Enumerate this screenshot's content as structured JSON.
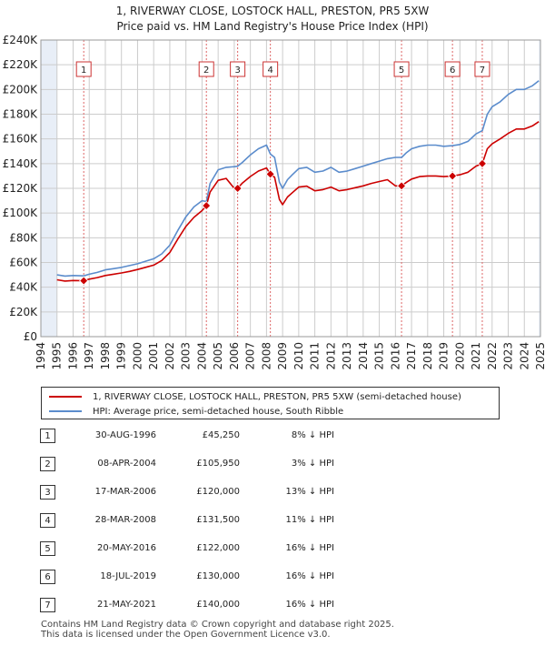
{
  "title": {
    "line1": "1, RIVERWAY CLOSE, LOSTOCK HALL, PRESTON, PR5 5XW",
    "line2": "Price paid vs. HM Land Registry's House Price Index (HPI)"
  },
  "colors": {
    "property": "#cc0000",
    "hpi": "#5b8ccc",
    "marker_line": "#dd6666",
    "grid": "#cccccc",
    "shade": "#e8eef7"
  },
  "legend": {
    "property_label": "1, RIVERWAY CLOSE, LOSTOCK HALL, PRESTON, PR5 5XW (semi-detached house)",
    "hpi_label": "HPI: Average price, semi-detached house, South Ribble"
  },
  "sales": [
    {
      "num": "1",
      "date": "30-AUG-1996",
      "price": "£45,250",
      "hpi": "8% ↓ HPI"
    },
    {
      "num": "2",
      "date": "08-APR-2004",
      "price": "£105,950",
      "hpi": "3% ↓ HPI"
    },
    {
      "num": "3",
      "date": "17-MAR-2006",
      "price": "£120,000",
      "hpi": "13% ↓ HPI"
    },
    {
      "num": "4",
      "date": "28-MAR-2008",
      "price": "£131,500",
      "hpi": "11% ↓ HPI"
    },
    {
      "num": "5",
      "date": "20-MAY-2016",
      "price": "£122,000",
      "hpi": "16% ↓ HPI"
    },
    {
      "num": "6",
      "date": "18-JUL-2019",
      "price": "£130,000",
      "hpi": "16% ↓ HPI"
    },
    {
      "num": "7",
      "date": "21-MAY-2021",
      "price": "£140,000",
      "hpi": "16% ↓ HPI"
    }
  ],
  "footer": {
    "line1": "Contains HM Land Registry data © Crown copyright and database right 2025.",
    "line2": "This data is licensed under the Open Government Licence v3.0."
  },
  "chart_data": {
    "type": "line",
    "title": "1, RIVERWAY CLOSE, LOSTOCK HALL, PRESTON, PR5 5XW",
    "subtitle": "Price paid vs. HM Land Registry's House Price Index (HPI)",
    "xlabel": "",
    "ylabel": "",
    "xlim": [
      1994,
      2025
    ],
    "ylim": [
      0,
      240000
    ],
    "grid": true,
    "shaded_periods": [
      [
        1994,
        1995.0
      ],
      [
        2024.9,
        2025
      ]
    ],
    "x_ticks": [
      "1994",
      "1995",
      "1996",
      "1997",
      "1998",
      "1999",
      "2000",
      "2001",
      "2002",
      "2003",
      "2004",
      "2005",
      "2006",
      "2007",
      "2008",
      "2009",
      "2010",
      "2011",
      "2012",
      "2013",
      "2014",
      "2015",
      "2016",
      "2017",
      "2018",
      "2019",
      "2020",
      "2021",
      "2022",
      "2023",
      "2024",
      "2025"
    ],
    "y_ticks": [
      {
        "value": 0,
        "label": "£0"
      },
      {
        "value": 20000,
        "label": "£20K"
      },
      {
        "value": 40000,
        "label": "£40K"
      },
      {
        "value": 60000,
        "label": "£60K"
      },
      {
        "value": 80000,
        "label": "£80K"
      },
      {
        "value": 100000,
        "label": "£100K"
      },
      {
        "value": 120000,
        "label": "£120K"
      },
      {
        "value": 140000,
        "label": "£140K"
      },
      {
        "value": 160000,
        "label": "£160K"
      },
      {
        "value": 180000,
        "label": "£180K"
      },
      {
        "value": 200000,
        "label": "£200K"
      },
      {
        "value": 220000,
        "label": "£220K"
      },
      {
        "value": 240000,
        "label": "£240K"
      }
    ],
    "sale_markers": [
      {
        "label": "1",
        "x": 1996.66,
        "y": 45250
      },
      {
        "label": "2",
        "x": 2004.27,
        "y": 105950
      },
      {
        "label": "3",
        "x": 2006.21,
        "y": 120000
      },
      {
        "label": "4",
        "x": 2008.24,
        "y": 131500
      },
      {
        "label": "5",
        "x": 2016.38,
        "y": 122000
      },
      {
        "label": "6",
        "x": 2019.54,
        "y": 130000
      },
      {
        "label": "7",
        "x": 2021.39,
        "y": 140000
      }
    ],
    "series": [
      {
        "name": "HPI: Average price, semi-detached house, South Ribble",
        "x": [
          1995.0,
          1995.5,
          1996.0,
          1996.66,
          1997.0,
          1997.5,
          1998.0,
          1998.5,
          1999.0,
          1999.5,
          2000.0,
          2000.5,
          2001.0,
          2001.5,
          2002.0,
          2002.5,
          2003.0,
          2003.5,
          2004.0,
          2004.27,
          2004.5,
          2005.0,
          2005.5,
          2006.0,
          2006.21,
          2006.5,
          2007.0,
          2007.5,
          2008.0,
          2008.24,
          2008.5,
          2008.8,
          2009.0,
          2009.3,
          2009.6,
          2010.0,
          2010.5,
          2011.0,
          2011.5,
          2012.0,
          2012.5,
          2013.0,
          2013.5,
          2014.0,
          2014.5,
          2015.0,
          2015.5,
          2016.0,
          2016.38,
          2016.7,
          2017.0,
          2017.5,
          2018.0,
          2018.5,
          2019.0,
          2019.54,
          2020.0,
          2020.5,
          2021.0,
          2021.39,
          2021.7,
          2022.0,
          2022.5,
          2023.0,
          2023.5,
          2024.0,
          2024.5,
          2024.9
        ],
        "y": [
          50000,
          49000,
          49500,
          49200,
          50500,
          52000,
          54000,
          55000,
          56000,
          57500,
          59000,
          61000,
          63000,
          67000,
          74000,
          86000,
          97000,
          105000,
          110000,
          109300,
          124000,
          135000,
          137000,
          137500,
          137900,
          141000,
          147000,
          152000,
          155000,
          147800,
          145000,
          125000,
          120000,
          127000,
          131000,
          136000,
          137000,
          133000,
          134000,
          137000,
          133000,
          134000,
          136000,
          138000,
          140000,
          142000,
          144000,
          145000,
          145000,
          149000,
          152000,
          154000,
          155000,
          155000,
          154000,
          154500,
          155500,
          158000,
          164000,
          166700,
          180000,
          186000,
          190000,
          196000,
          200000,
          200000,
          203000,
          207000
        ]
      },
      {
        "name": "1, RIVERWAY CLOSE, LOSTOCK HALL, PRESTON, PR5 5XW (semi-detached house)",
        "x": [
          1995.0,
          1995.5,
          1996.0,
          1996.66,
          1997.0,
          1997.5,
          1998.0,
          1998.5,
          1999.0,
          1999.5,
          2000.0,
          2000.5,
          2001.0,
          2001.5,
          2002.0,
          2002.5,
          2003.0,
          2003.5,
          2004.0,
          2004.27,
          2004.5,
          2005.0,
          2005.5,
          2006.0,
          2006.21,
          2006.5,
          2007.0,
          2007.5,
          2008.0,
          2008.24,
          2008.5,
          2008.8,
          2009.0,
          2009.3,
          2009.6,
          2010.0,
          2010.5,
          2011.0,
          2011.5,
          2012.0,
          2012.5,
          2013.0,
          2013.5,
          2014.0,
          2014.5,
          2015.0,
          2015.5,
          2016.0,
          2016.38,
          2016.7,
          2017.0,
          2017.5,
          2018.0,
          2018.5,
          2019.0,
          2019.54,
          2020.0,
          2020.5,
          2021.0,
          2021.39,
          2021.7,
          2022.0,
          2022.5,
          2023.0,
          2023.5,
          2024.0,
          2024.5,
          2024.9
        ],
        "y": [
          46000,
          45000,
          45400,
          45250,
          46500,
          47800,
          49500,
          50500,
          51500,
          52800,
          54300,
          56100,
          57900,
          61600,
          68000,
          79000,
          89200,
          96500,
          102000,
          105950,
          117000,
          126500,
          128000,
          120000,
          120000,
          124300,
          129600,
          134000,
          136500,
          131500,
          129000,
          111000,
          106800,
          113000,
          116500,
          121000,
          121800,
          118000,
          119000,
          121000,
          118000,
          119000,
          120500,
          122000,
          124000,
          125500,
          127000,
          122000,
          122000,
          125000,
          127500,
          129500,
          130000,
          130000,
          129500,
          130000,
          131000,
          133000,
          138000,
          140000,
          152000,
          156000,
          160000,
          164500,
          168000,
          168000,
          170500,
          174000
        ]
      }
    ]
  }
}
